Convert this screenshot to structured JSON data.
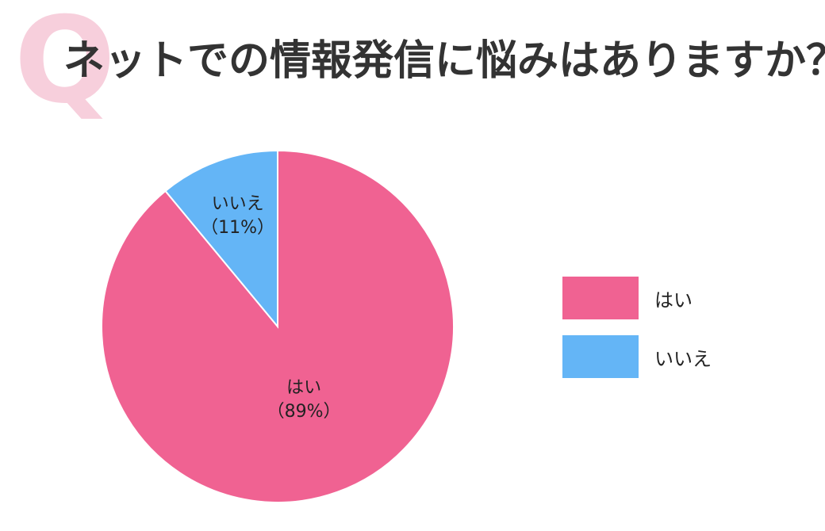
{
  "header": {
    "q_mark": "Q",
    "title": "ネットでの情報発信に悩みはありますか？"
  },
  "chart_data": {
    "type": "pie",
    "title": "ネットでの情報発信に悩みはありますか？",
    "slices": [
      {
        "label": "はい",
        "value": 89,
        "display": "（89%）",
        "color": "#f06292"
      },
      {
        "label": "いいえ",
        "value": 11,
        "display": "（11%）",
        "color": "#64b5f6"
      }
    ],
    "legend_position": "right"
  },
  "legend": {
    "items": [
      {
        "label": "はい",
        "color": "#f06292"
      },
      {
        "label": "いいえ",
        "color": "#64b5f6"
      }
    ]
  }
}
